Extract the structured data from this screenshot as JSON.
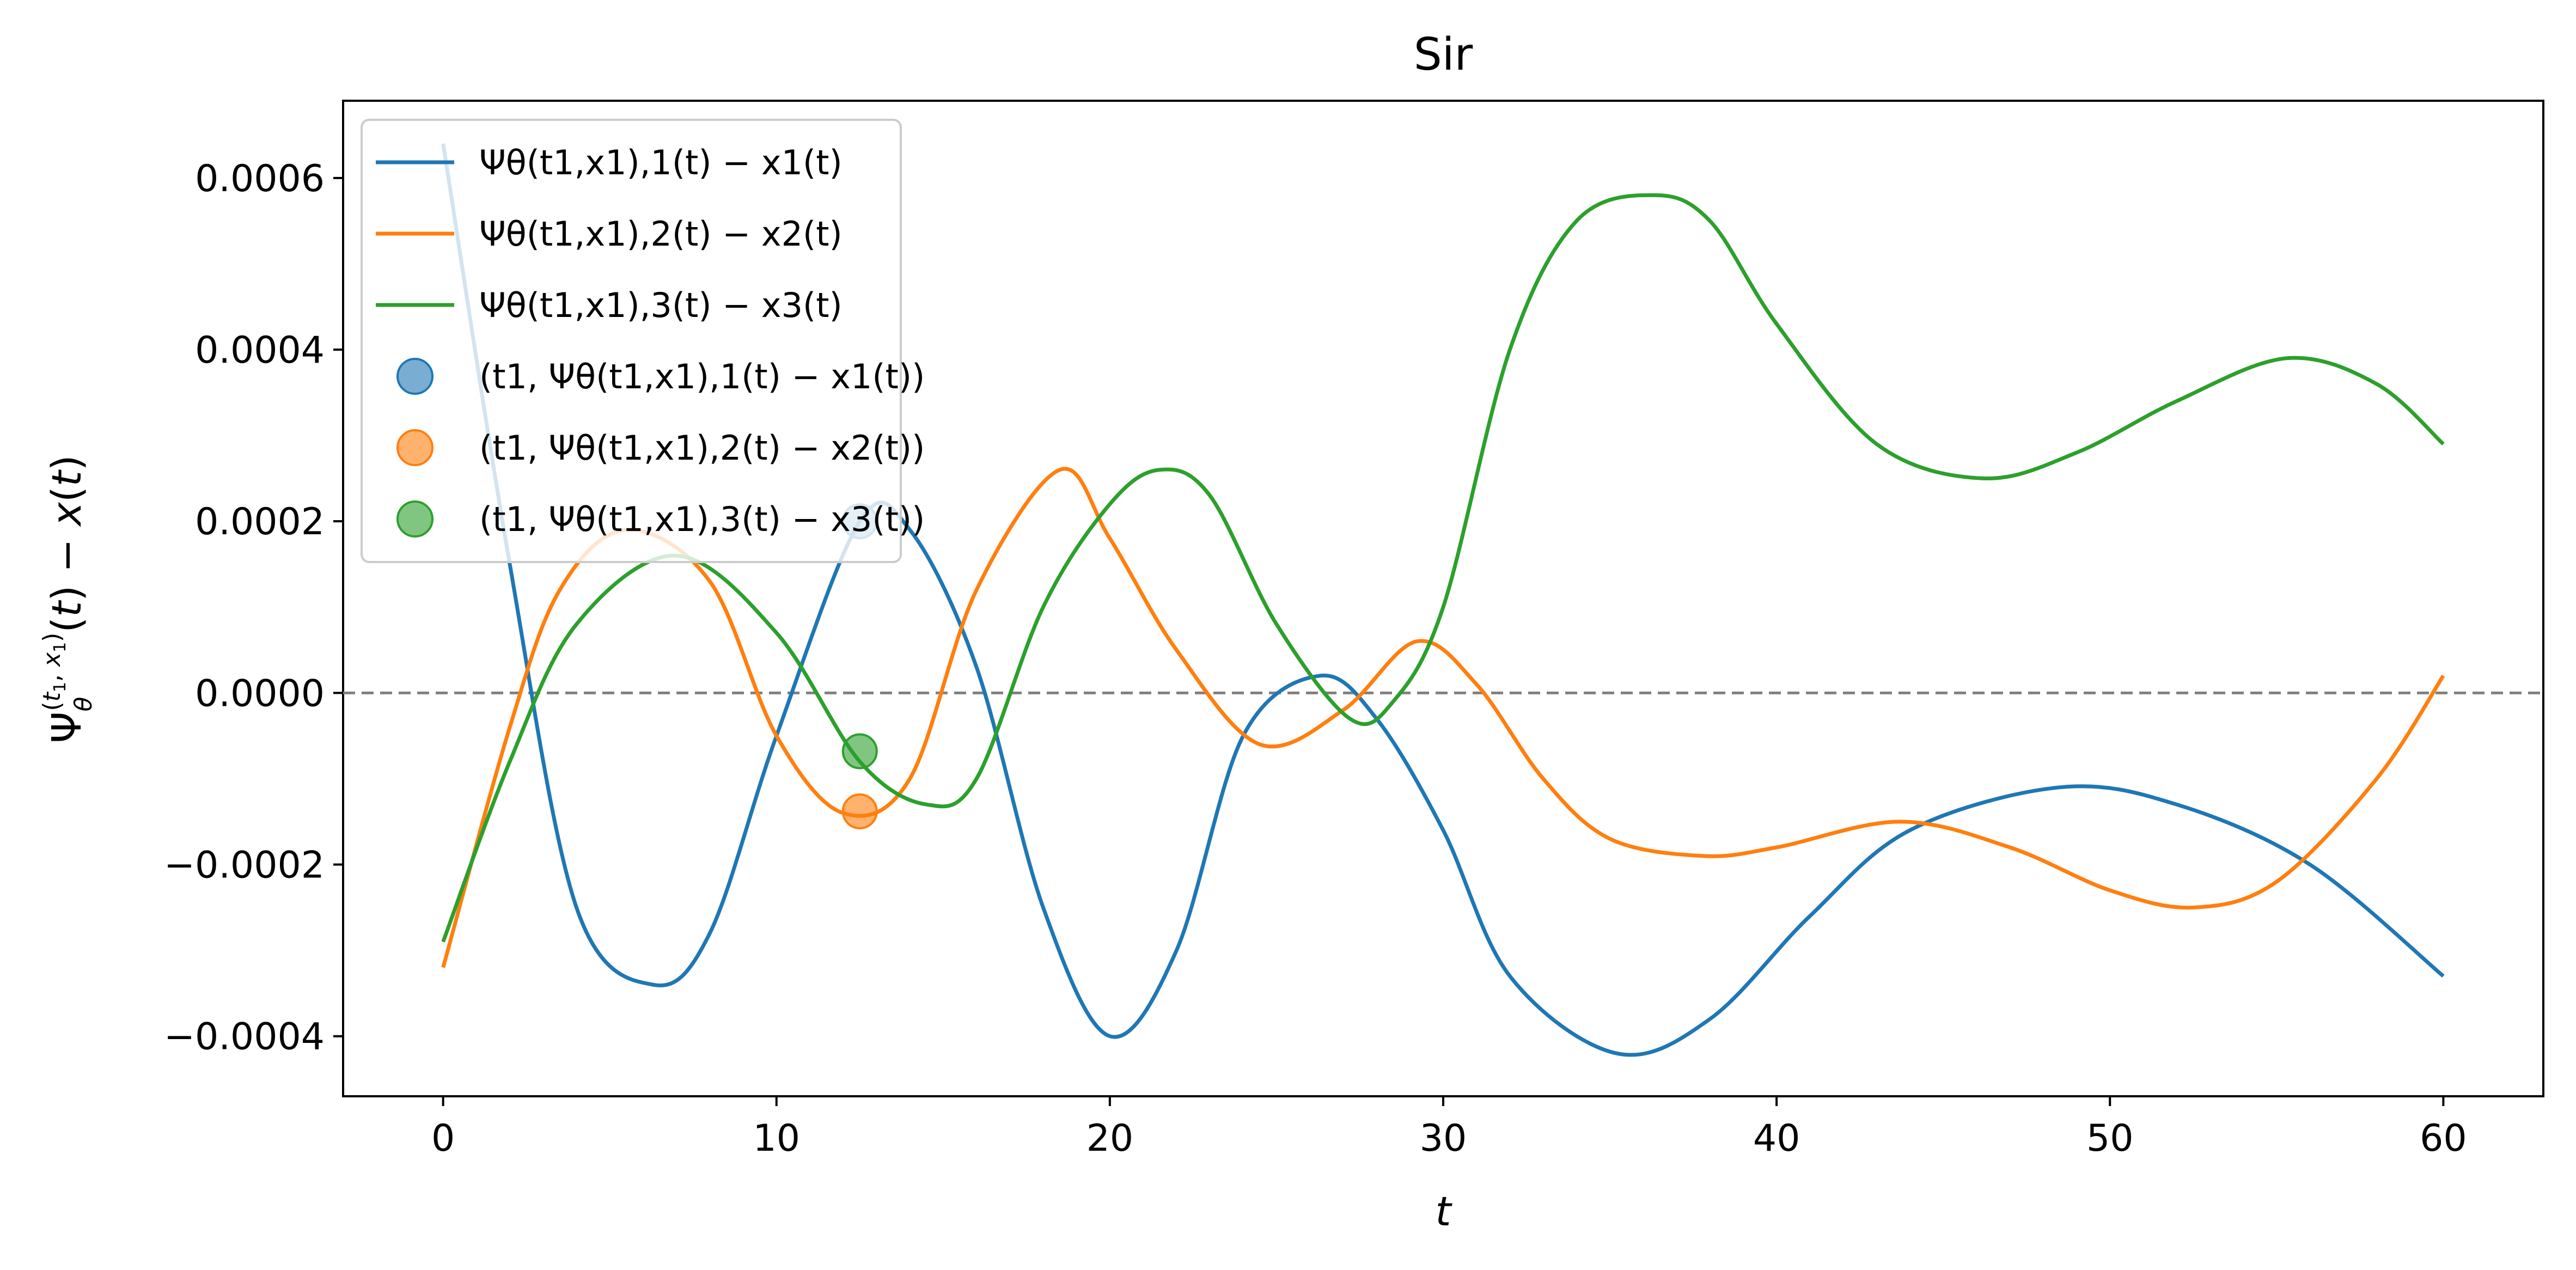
{
  "chart_data": {
    "type": "line",
    "title": "Sir",
    "xlabel": "t",
    "ylabel": "Ψθ(t1,x1)(t) − x(t)",
    "xlim": [
      -3,
      63
    ],
    "ylim": [
      -0.00047,
      0.00069
    ],
    "x_ticks": [
      0,
      10,
      20,
      30,
      40,
      50,
      60
    ],
    "x_tick_labels": [
      "0",
      "10",
      "20",
      "30",
      "40",
      "50",
      "60"
    ],
    "y_ticks": [
      -0.0004,
      -0.0002,
      0.0,
      0.0002,
      0.0004,
      0.0006
    ],
    "y_tick_labels": [
      "−0.0004",
      "−0.0002",
      "0.0000",
      "0.0002",
      "0.0004",
      "0.0006"
    ],
    "grid": false,
    "legend_position": "upper-left",
    "reference_line": {
      "y": 0,
      "style": "dashed",
      "color": "#808080"
    },
    "series": [
      {
        "name": "Ψθ(t1,x1),1(t) − x1(t)",
        "color": "#1f77b4",
        "x": [
          0,
          2,
          4,
          6.3,
          8,
          10,
          12.5,
          14,
          16,
          18,
          20,
          22,
          24,
          26.3,
          28,
          30,
          32,
          35.2,
          38,
          41,
          44,
          48.5,
          52,
          56,
          60
        ],
        "y": [
          0.00064,
          0.00015,
          -0.00025,
          -0.00034,
          -0.00028,
          -5e-05,
          0.0002,
          0.00019,
          3e-05,
          -0.00025,
          -0.0004,
          -0.0003,
          -5e-05,
          2e-05,
          -3e-05,
          -0.00016,
          -0.00033,
          -0.00042,
          -0.00038,
          -0.00026,
          -0.00016,
          -0.00011,
          -0.00013,
          -0.0002,
          -0.00033
        ]
      },
      {
        "name": "Ψθ(t1,x1),2(t) − x2(t)",
        "color": "#ff7f0e",
        "x": [
          0,
          2,
          3.5,
          5.5,
          8,
          10,
          12,
          14,
          16,
          18.5,
          20,
          22,
          24.5,
          27,
          29.2,
          31,
          33,
          35,
          37.8,
          40,
          43.7,
          47,
          50,
          52.5,
          55,
          58,
          60
        ],
        "y": [
          -0.00032,
          -4e-05,
          0.00012,
          0.00019,
          0.00013,
          -5e-05,
          -0.00014,
          -0.0001,
          0.00012,
          0.00026,
          0.00018,
          5e-05,
          -6e-05,
          -2e-05,
          6e-05,
          1e-05,
          -0.0001,
          -0.00017,
          -0.00019,
          -0.00018,
          -0.00015,
          -0.00018,
          -0.00023,
          -0.00025,
          -0.00022,
          -0.0001,
          2e-05
        ]
      },
      {
        "name": "Ψθ(t1,x1),3(t) − x3(t)",
        "color": "#2ca02c",
        "x": [
          0,
          2,
          4,
          7,
          10,
          12.5,
          14.5,
          16,
          18,
          20,
          21.5,
          23,
          25,
          27.2,
          28.5,
          30,
          32,
          34,
          36.3,
          38,
          40,
          43,
          46.2,
          49,
          52,
          55.3,
          58,
          60
        ],
        "y": [
          -0.00029,
          -8e-05,
          8e-05,
          0.00016,
          7e-05,
          -8e-05,
          -0.00013,
          -0.0001,
          0.0001,
          0.00022,
          0.00026,
          0.00023,
          8e-05,
          -3e-05,
          -1e-05,
          0.0001,
          0.0004,
          0.00055,
          0.00058,
          0.00055,
          0.00043,
          0.00029,
          0.00025,
          0.00028,
          0.00034,
          0.00039,
          0.00036,
          0.00029
        ]
      }
    ],
    "markers": [
      {
        "name": "(t1, Ψθ(t1,x1),1(t) − x1(t))",
        "color": "#1f77b4",
        "x": 12.5,
        "y": 0.0002
      },
      {
        "name": "(t1, Ψθ(t1,x1),2(t) − x2(t))",
        "color": "#ff7f0e",
        "x": 12.5,
        "y": -0.000138
      },
      {
        "name": "(t1, Ψθ(t1,x1),3(t) − x3(t))",
        "color": "#2ca02c",
        "x": 12.5,
        "y": -6.8e-05
      }
    ]
  }
}
